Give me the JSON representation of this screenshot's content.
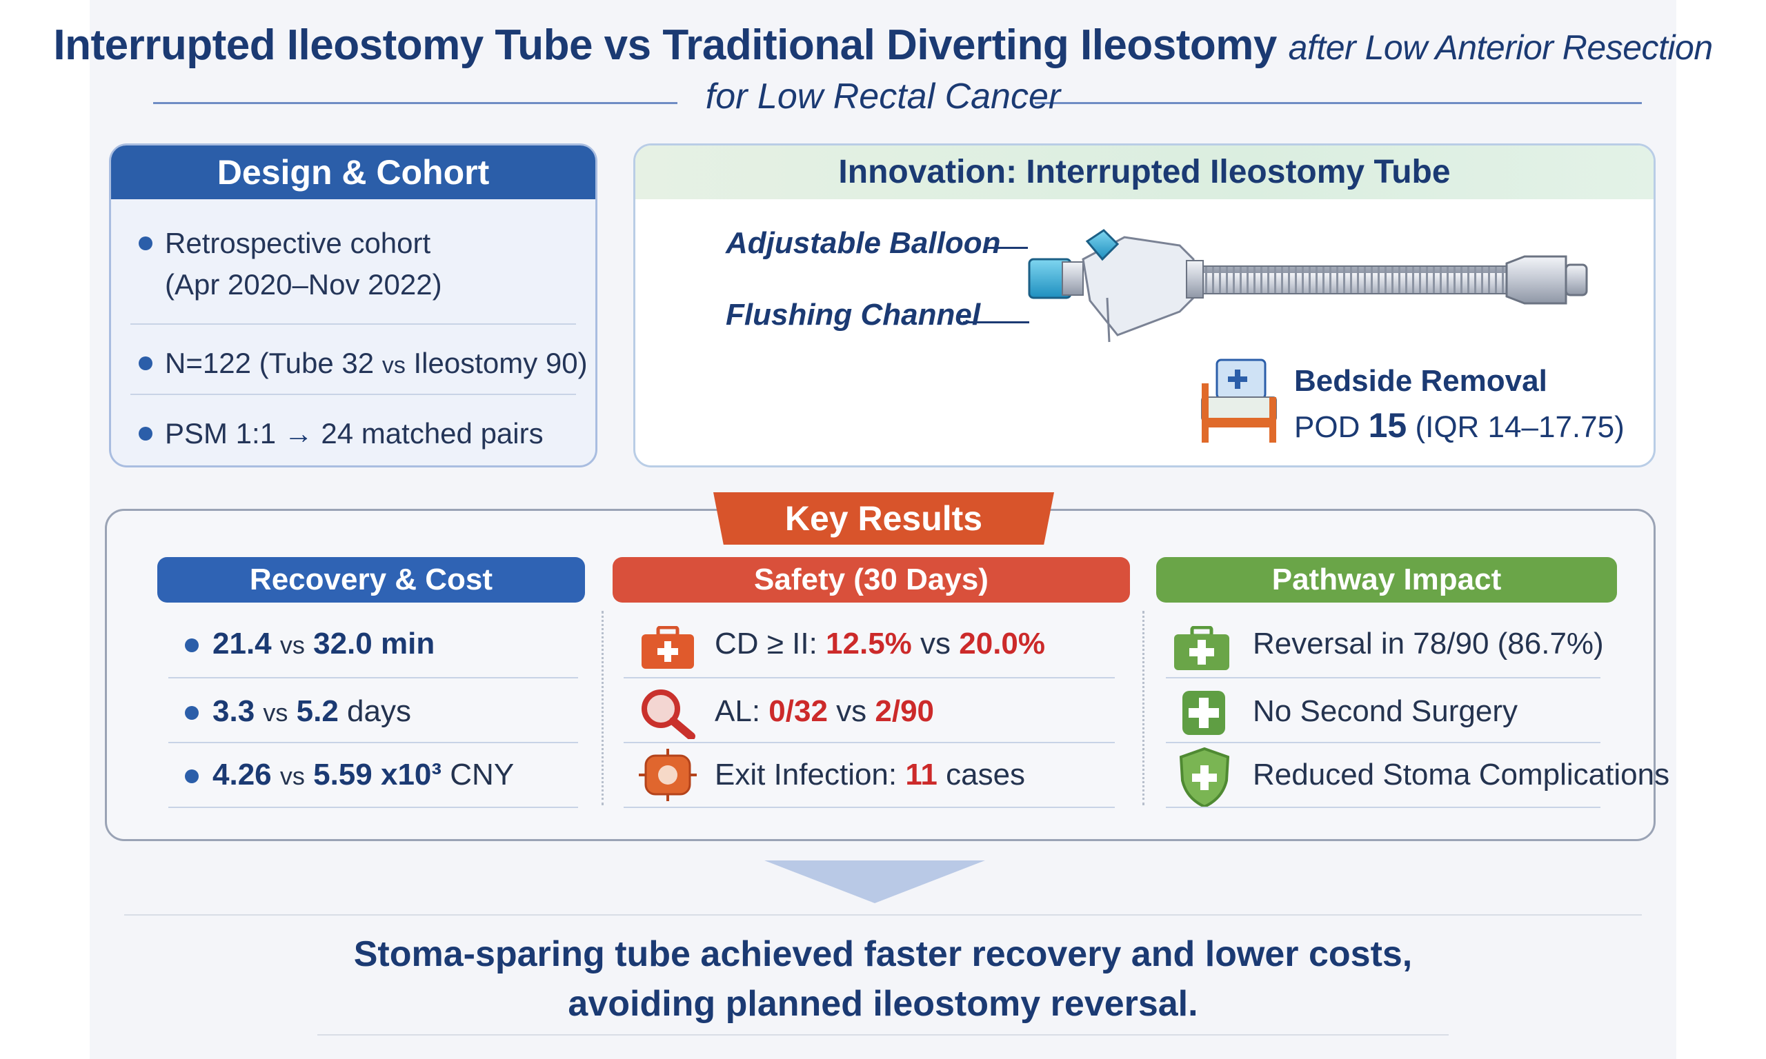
{
  "title": {
    "main": "Interrupted Ileostomy Tube vs Traditional Diverting Ileostomy",
    "suffix": "after Low Anterior Resection",
    "line2": "for Low Rectal Cancer"
  },
  "design": {
    "header": "Design & Cohort",
    "items": [
      {
        "line1": "Retrospective cohort",
        "line2": "(Apr 2020–Nov 2022)"
      },
      {
        "a": "N=122 (Tube 32 ",
        "vs": "vs",
        "b": " Ileostomy 90)"
      },
      {
        "a": "PSM 1:1 ",
        "arrow": "→",
        "b": " 24 matched pairs"
      }
    ]
  },
  "innovation": {
    "header": "Innovation: Interrupted Ileostomy Tube",
    "callouts": [
      "Adjustable Balloon",
      "Flushing Channel"
    ],
    "removal_title": "Bedside Removal",
    "removal_pod": "POD",
    "removal_value": "15",
    "removal_iqr": "(IQR 14–17.75)",
    "icon": "hospital-bed-icon"
  },
  "results": {
    "badge": "Key Results",
    "recovery": {
      "header": "Recovery & Cost",
      "rows": [
        {
          "a": "21.4",
          "vs": "vs",
          "b": "32.0",
          "unit": "min"
        },
        {
          "a": "3.3",
          "vs": "vs",
          "b": "5.2",
          "unit": "days"
        },
        {
          "a": "4.26",
          "vs": "vs",
          "b": "5.59 x10³",
          "unit": "CNY"
        }
      ]
    },
    "safety": {
      "header": "Safety (30 Days)",
      "rows": [
        {
          "label": "CD ≥ II: ",
          "a": "12.5%",
          "vs": " vs ",
          "b": "20.0%",
          "icon": "medical-kit-icon"
        },
        {
          "label": "AL: ",
          "a": "0/32",
          "vs": " vs ",
          "b": "2/90",
          "icon": "magnifier-icon"
        },
        {
          "label": "Exit Infection: ",
          "a": "11",
          "suffix": " cases",
          "icon": "infection-icon"
        }
      ]
    },
    "pathway": {
      "header": "Pathway Impact",
      "rows": [
        {
          "text": "Reversal in 78/90 (86.7%)",
          "icon": "green-cross-icon"
        },
        {
          "text": "No Second Surgery",
          "icon": "green-kit-icon"
        },
        {
          "text": "Reduced Stoma Complications",
          "icon": "shield-cross-icon"
        }
      ]
    }
  },
  "conclusion": {
    "line1": "Stoma-sparing tube achieved faster recovery and lower costs,",
    "line2": "avoiding planned ileostomy reversal."
  },
  "colors": {
    "navy": "#1b3a73",
    "blue": "#2b5ea9",
    "red": "#d9503b",
    "green": "#6aa548",
    "orange": "#d8542b"
  }
}
